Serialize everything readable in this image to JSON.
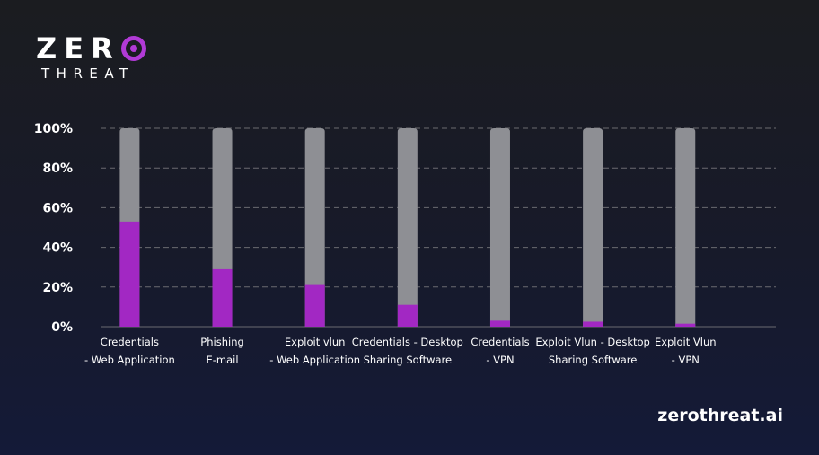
{
  "logo": {
    "word": "ZER",
    "sub": "THREAT"
  },
  "footer": {
    "url": "zerothreat.ai"
  },
  "colors": {
    "accent": "#a228c3",
    "track": "#8e8f94",
    "grid": "#6a6b70",
    "text": "#ffffff"
  },
  "chart_data": {
    "type": "bar",
    "stacked_to": 100,
    "categories": [
      [
        "Credentials",
        "- Web Application"
      ],
      [
        "Phishing",
        "E-mail"
      ],
      [
        "Exploit vlun",
        "- Web Application"
      ],
      [
        "Credentials - Desktop",
        "Sharing Software"
      ],
      [
        "Credentials",
        "- VPN"
      ],
      [
        "Exploit Vlun - Desktop",
        "Sharing Software"
      ],
      [
        "Exploit Vlun",
        "- VPN"
      ]
    ],
    "values": [
      53,
      29,
      21,
      11,
      3,
      2.5,
      1.5
    ],
    "ylim": [
      0,
      100
    ],
    "yticks": [
      "0%",
      "20%",
      "40%",
      "60%",
      "80%",
      "100%"
    ],
    "grid": true,
    "gridlines": [
      0,
      20,
      40,
      60,
      80,
      100
    ]
  }
}
